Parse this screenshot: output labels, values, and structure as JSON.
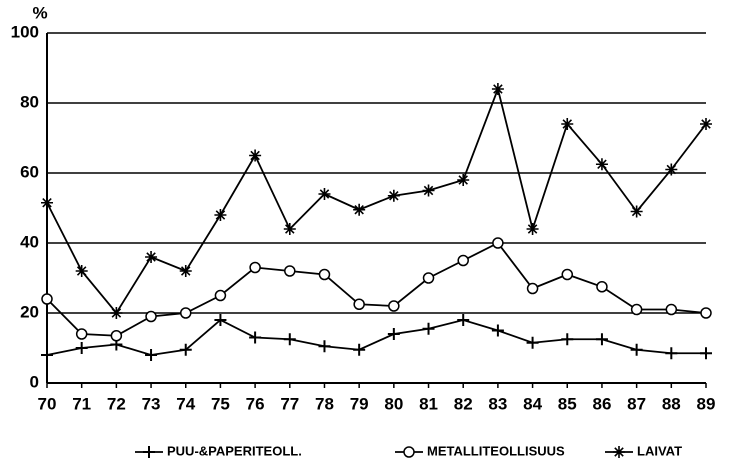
{
  "chart_data": {
    "type": "line",
    "ylabel": "%",
    "categories": [
      "70",
      "71",
      "72",
      "73",
      "74",
      "75",
      "76",
      "77",
      "78",
      "79",
      "80",
      "81",
      "82",
      "83",
      "84",
      "85",
      "86",
      "87",
      "88",
      "89"
    ],
    "ylim": [
      0,
      100
    ],
    "yticks": [
      0,
      20,
      40,
      60,
      80,
      100
    ],
    "grid": true,
    "series": [
      {
        "name": "PUU-&PAPERITEOLL.",
        "color": "#000000",
        "marker": "plus",
        "values": [
          8,
          10,
          11,
          8,
          9.5,
          18,
          13,
          12.5,
          10.5,
          9.5,
          14,
          15.5,
          18,
          15,
          11.5,
          12.5,
          12.5,
          9.5,
          8.5,
          8.5
        ]
      },
      {
        "name": "METALLITEOLLISUUS",
        "color": "#000000",
        "marker": "circle",
        "values": [
          24,
          14,
          13.5,
          19,
          20,
          25,
          33,
          32,
          31,
          22.5,
          22,
          30,
          35,
          40,
          27,
          31,
          27.5,
          21,
          21,
          20
        ]
      },
      {
        "name": "LAIVAT",
        "color": "#000000",
        "marker": "star",
        "values": [
          51.5,
          32,
          20,
          36,
          32,
          48,
          65,
          44,
          54,
          49.5,
          53.5,
          55,
          58,
          84,
          44,
          74,
          62.5,
          49,
          61,
          74
        ]
      }
    ]
  }
}
